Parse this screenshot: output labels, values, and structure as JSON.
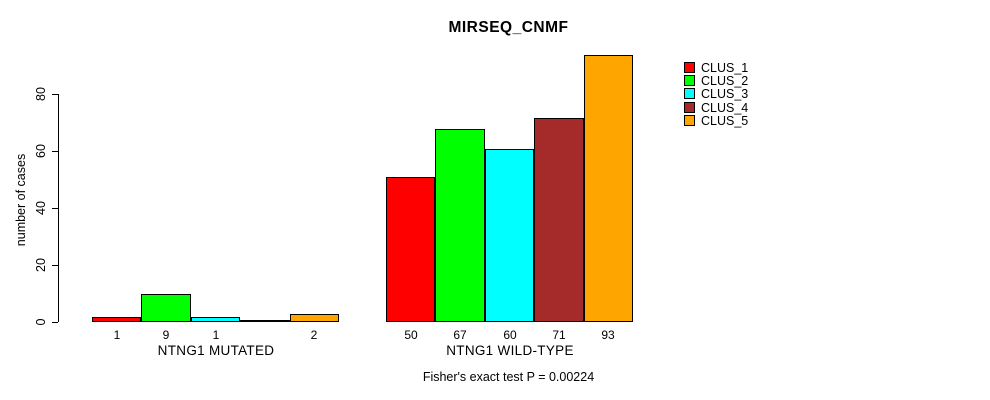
{
  "page": {
    "background_color": "#FFFFFF",
    "text_color": "#000000"
  },
  "chart_data": {
    "type": "bar",
    "title": "MIRSEQ_CNMF",
    "xlabel": "",
    "ylabel": "number of cases",
    "ylim": [
      0,
      93
    ],
    "yticks": [
      0,
      20,
      40,
      60,
      80
    ],
    "grid": false,
    "legend_position": "right-top",
    "bar_border_color": "#000000",
    "axis_color": "#000000",
    "series": [
      {
        "name": "CLUS_1",
        "color": "#FF0000"
      },
      {
        "name": "CLUS_2",
        "color": "#00FF00"
      },
      {
        "name": "CLUS_3",
        "color": "#00FFFF"
      },
      {
        "name": "CLUS_4",
        "color": "#A52A2A"
      },
      {
        "name": "CLUS_5",
        "color": "#FFA500"
      }
    ],
    "groups": [
      {
        "label": "NTNG1 MUTATED",
        "values": [
          1,
          9,
          1,
          0,
          2
        ],
        "bar_labels": [
          "1",
          "9",
          "1",
          "",
          "2"
        ]
      },
      {
        "label": "NTNG1 WILD-TYPE",
        "values": [
          50,
          67,
          60,
          71,
          93
        ],
        "bar_labels": [
          "50",
          "67",
          "60",
          "71",
          "93"
        ]
      }
    ],
    "annotation": "Fisher's exact test P = 0.00224"
  }
}
